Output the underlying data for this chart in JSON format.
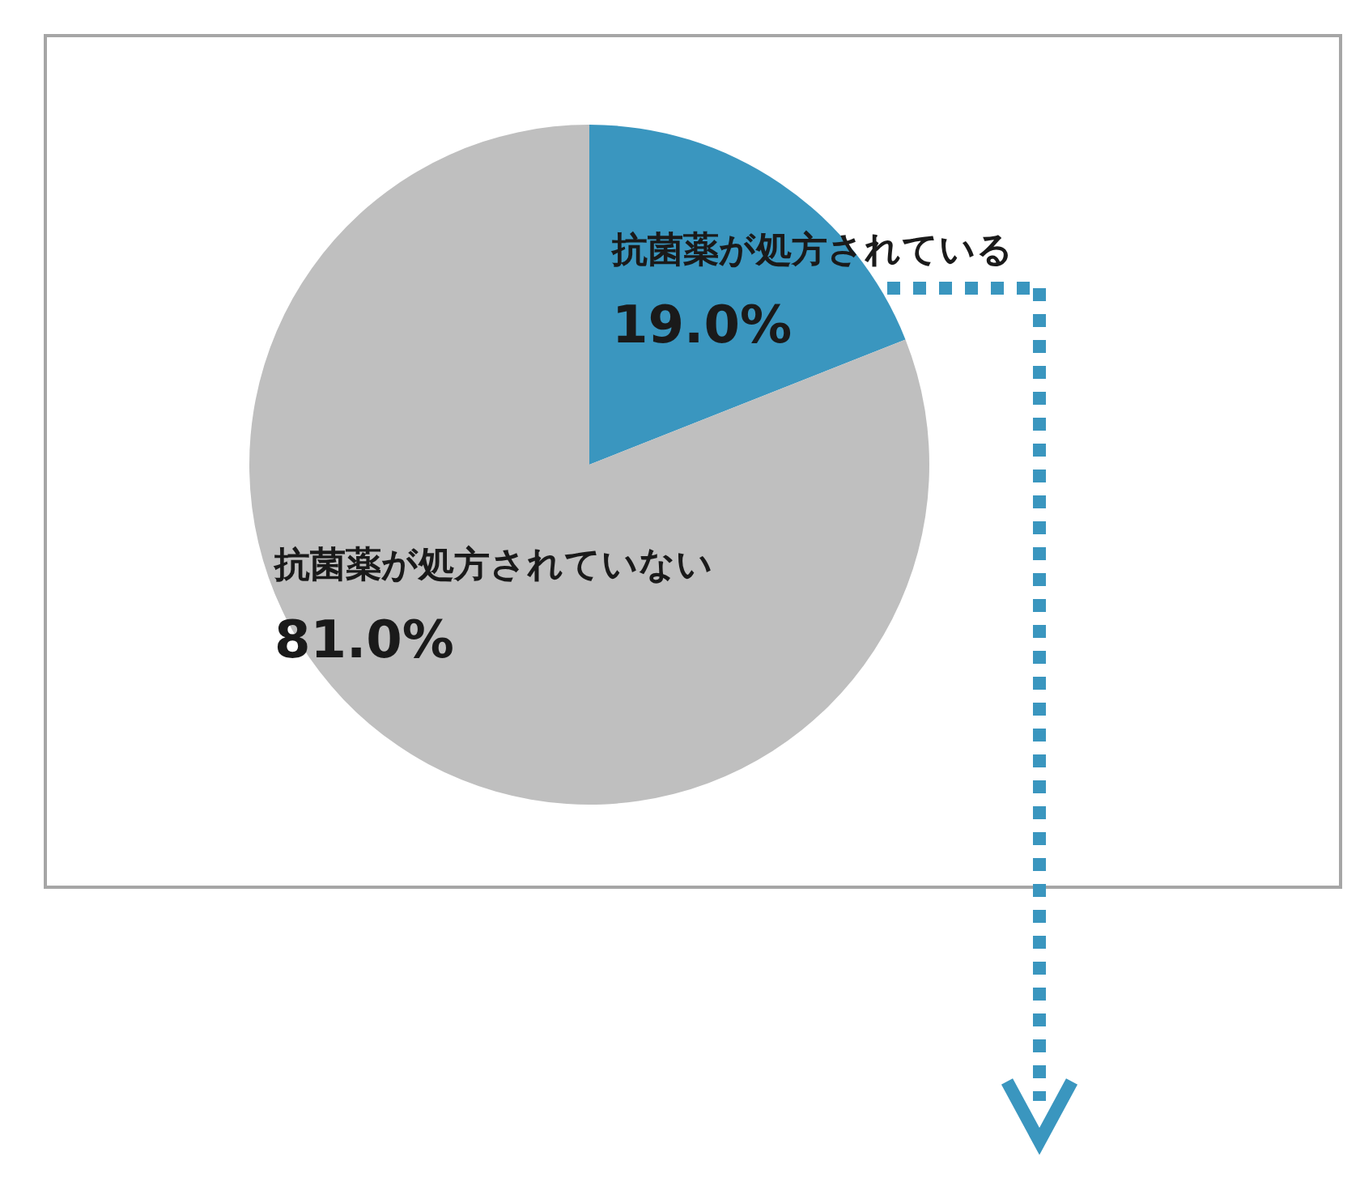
{
  "chart_data": {
    "type": "pie",
    "categories": [
      "抗菌薬が処方されている",
      "抗菌薬が処方されていない"
    ],
    "values": [
      19.0,
      81.0
    ],
    "colors": [
      "#3a96bf",
      "#bfbfbf"
    ],
    "value_labels": [
      "19.0%",
      "81.0%"
    ]
  }
}
